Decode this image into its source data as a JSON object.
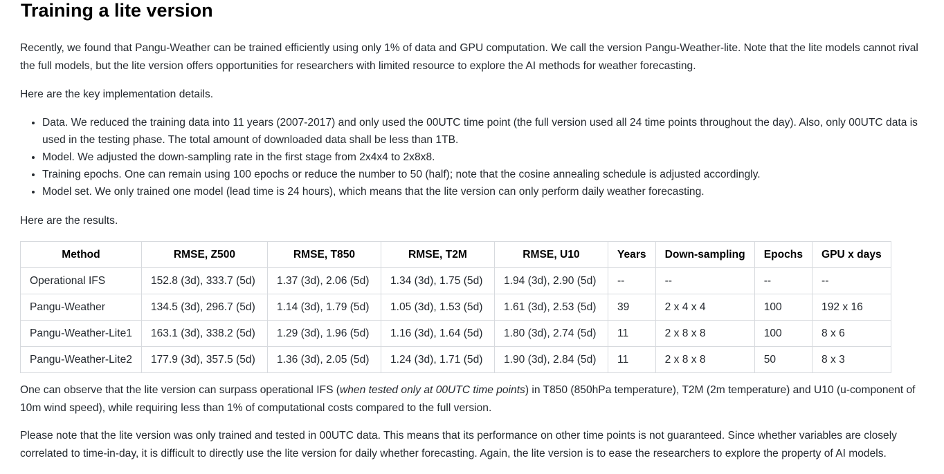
{
  "section": {
    "title": "Training a lite version",
    "intro": "Recently, we found that Pangu-Weather can be trained efficiently using only 1% of data and GPU computation. We call the version Pangu-Weather-lite. Note that the lite models cannot rival the full models, but the lite version offers opportunities for researchers with limited resource to explore the AI methods for weather forecasting.",
    "key_details_lead": "Here are the key implementation details.",
    "bullets": [
      "Data. We reduced the training data into 11 years (2007-2017) and only used the 00UTC time point (the full version used all 24 time points throughout the day). Also, only 00UTC data is used in the testing phase. The total amount of downloaded data shall be less than 1TB.",
      "Model. We adjusted the down-sampling rate in the first stage from 2x4x4 to 2x8x8.",
      "Training epochs. One can remain using 100 epochs or reduce the number to 50 (half); note that the cosine annealing schedule is adjusted accordingly.",
      "Model set. We only trained one model (lead time is 24 hours), which means that the lite version can only perform daily weather forecasting."
    ],
    "results_lead": "Here are the results.",
    "observation_pre": "One can observe that the lite version can surpass operational IFS (",
    "observation_em": "when tested only at 00UTC time points",
    "observation_post": ") in T850 (850hPa temperature), T2M (2m temperature) and U10 (u-component of 10m wind speed), while requiring less than 1% of computational costs compared to the full version.",
    "note": "Please note that the lite version was only trained and tested in 00UTC data. This means that its performance on other time points is not guaranteed. Since whether variables are closely correlated to time-in-day, it is difficult to directly use the lite version for daily whether forecasting. Again, the lite version is to ease the researchers to explore the property of AI models."
  },
  "table": {
    "headers": [
      "Method",
      "RMSE, Z500",
      "RMSE, T850",
      "RMSE, T2M",
      "RMSE, U10",
      "Years",
      "Down-sampling",
      "Epochs",
      "GPU x days"
    ],
    "rows": [
      [
        "Operational IFS",
        "152.8 (3d), 333.7 (5d)",
        "1.37 (3d), 2.06 (5d)",
        "1.34 (3d), 1.75 (5d)",
        "1.94 (3d), 2.90 (5d)",
        "--",
        "--",
        "--",
        "--"
      ],
      [
        "Pangu-Weather",
        "134.5 (3d), 296.7 (5d)",
        "1.14 (3d), 1.79 (5d)",
        "1.05 (3d), 1.53 (5d)",
        "1.61 (3d), 2.53 (5d)",
        "39",
        "2 x 4 x 4",
        "100",
        "192 x 16"
      ],
      [
        "Pangu-Weather-Lite1",
        "163.1 (3d), 338.2 (5d)",
        "1.29 (3d), 1.96 (5d)",
        "1.16 (3d), 1.64 (5d)",
        "1.80 (3d), 2.74 (5d)",
        "11",
        "2 x 8 x 8",
        "100",
        "8 x 6"
      ],
      [
        "Pangu-Weather-Lite2",
        "177.9 (3d), 357.5 (5d)",
        "1.36 (3d), 2.05 (5d)",
        "1.24 (3d), 1.71 (5d)",
        "1.90 (3d), 2.84 (5d)",
        "11",
        "2 x 8 x 8",
        "50",
        "8 x 3"
      ]
    ]
  }
}
